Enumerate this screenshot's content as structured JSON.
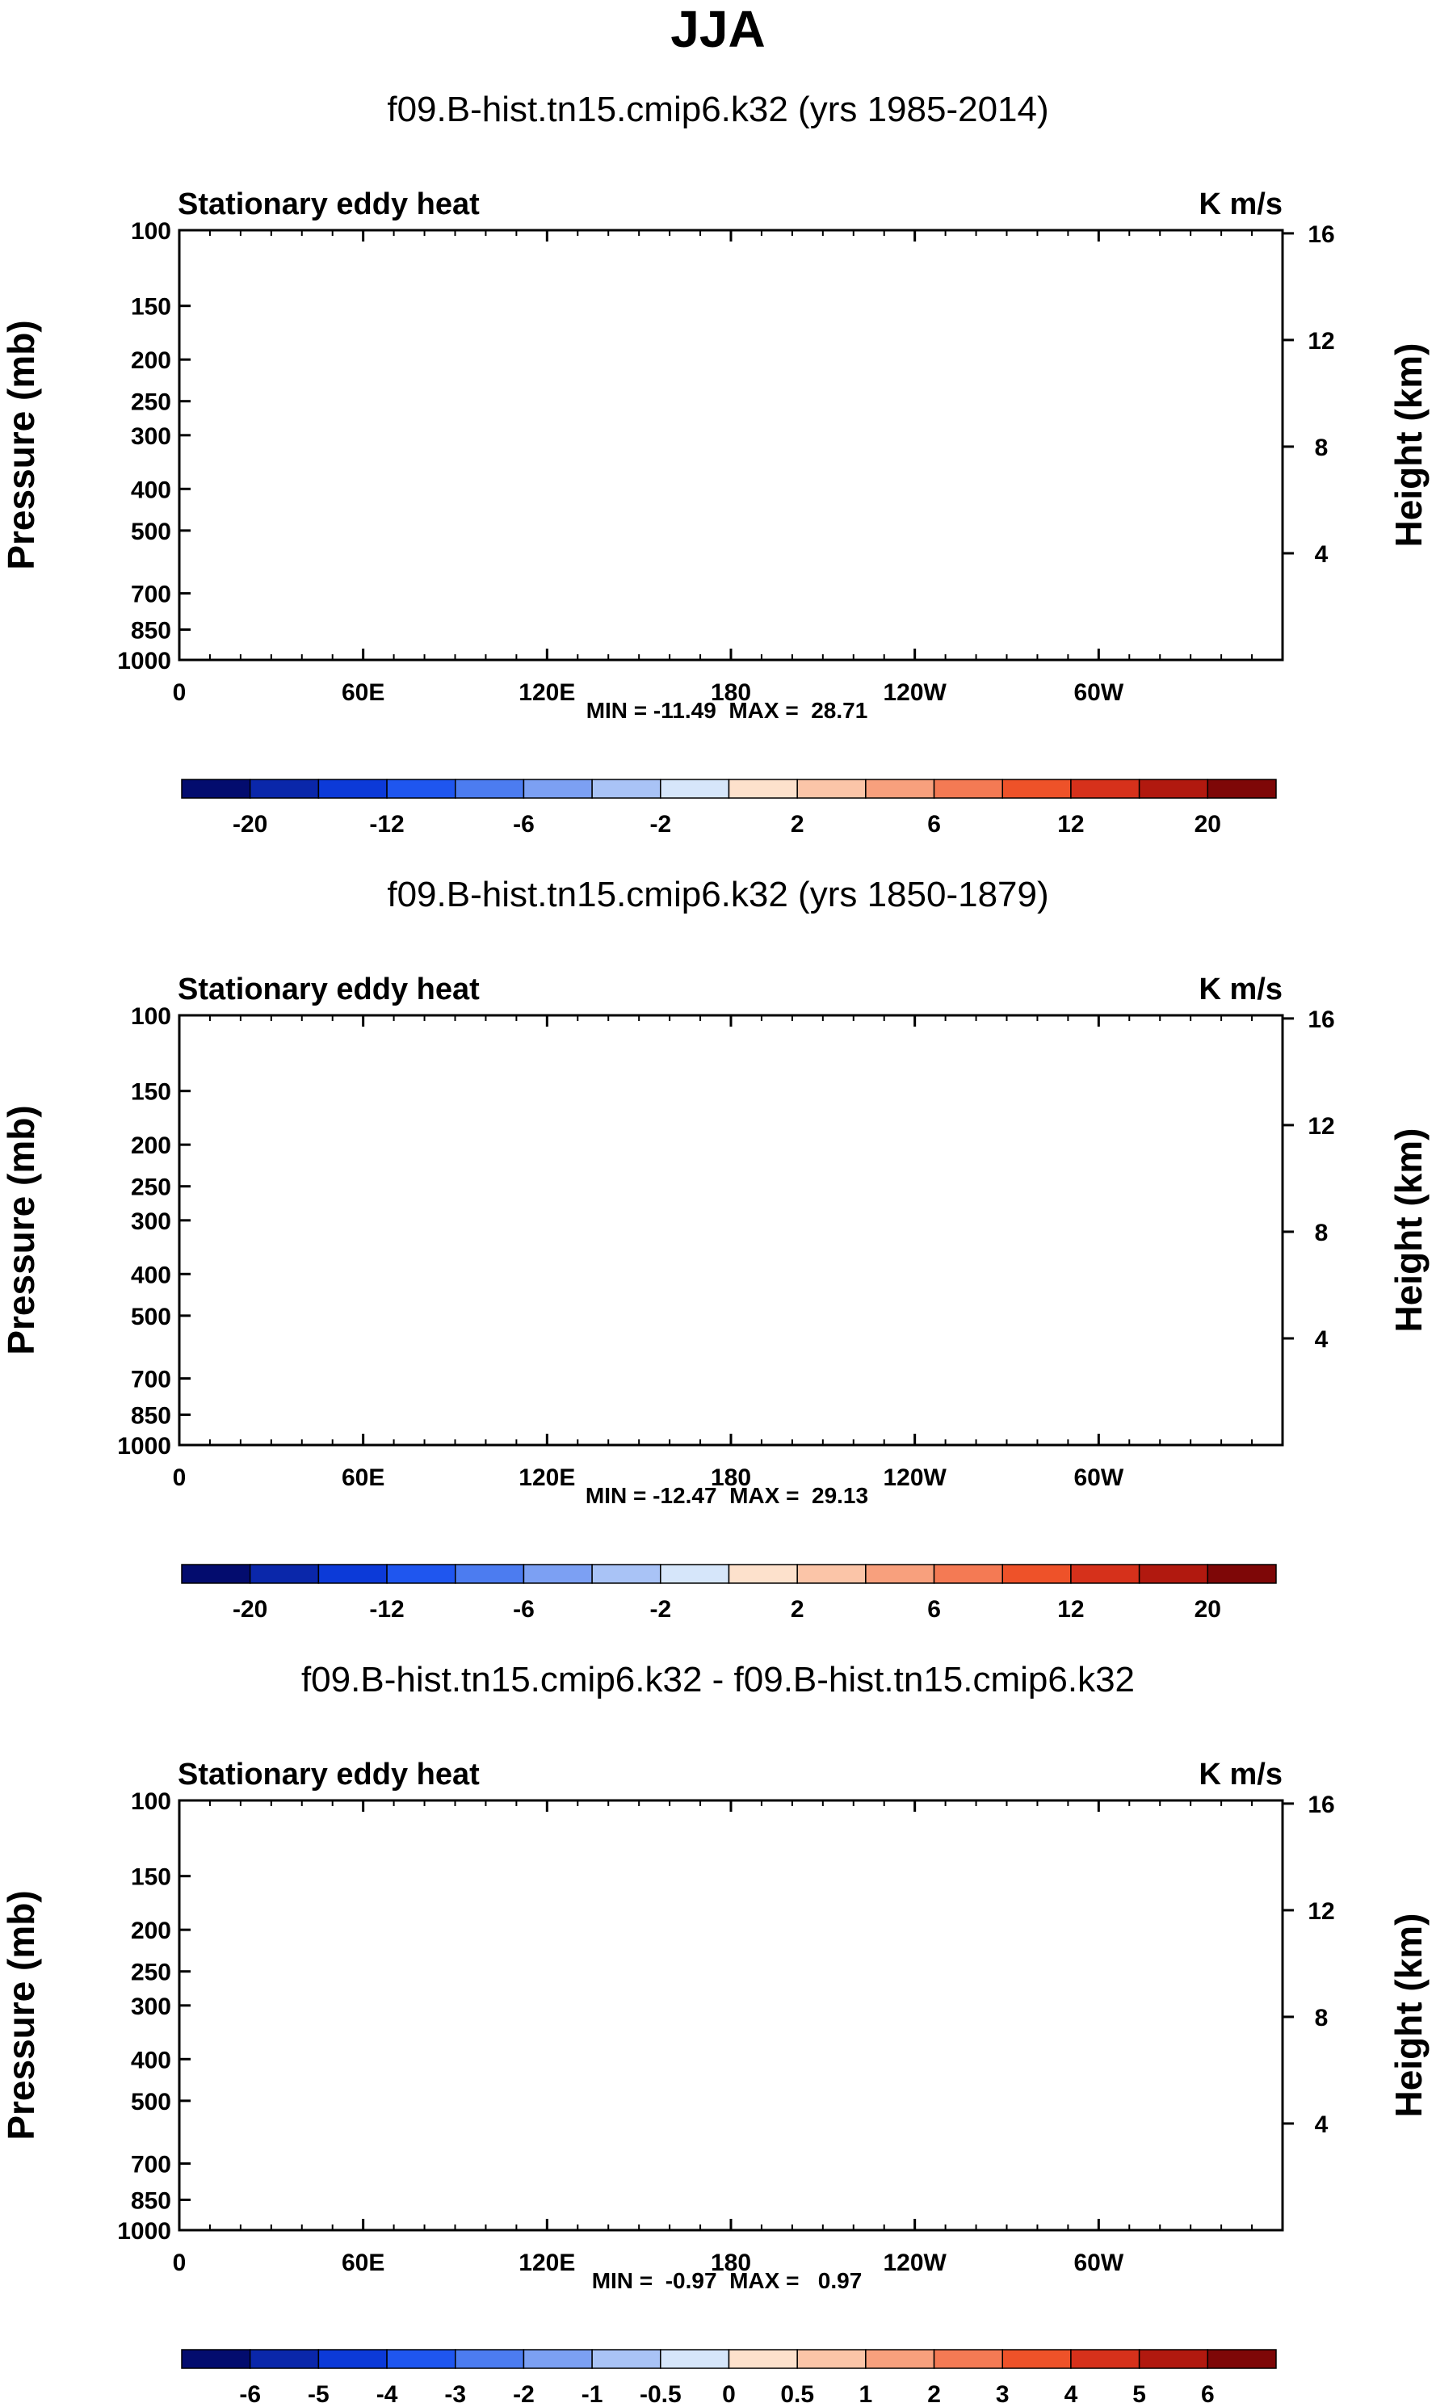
{
  "figure_title": "JJA",
  "colors": {
    "ice_blue": "#d6e6fa",
    "peach": "#fde1cc",
    "ocean": "#000000"
  },
  "chart_data": [
    {
      "type": "heatmap",
      "title": "f09.B-hist.tn15.cmip6.k32 (yrs 1985-2014)",
      "left_label": "Stationary eddy heat",
      "units": "K m/s",
      "xlabel": "",
      "ylabel": "Pressure (mb)",
      "ylabel_right": "Height (km)",
      "x_ticks": [
        "0",
        "60E",
        "120E",
        "180",
        "120W",
        "60W"
      ],
      "y_ticks": [
        "100",
        "150",
        "200",
        "250",
        "300",
        "400",
        "500",
        "700",
        "850",
        "1000"
      ],
      "y_ticks_right": [
        "16",
        "12",
        "8",
        "4"
      ],
      "stats_text": "MIN = -11.49  MAX =  28.71",
      "min": -11.49,
      "max": 28.71,
      "colorbar_labels": [
        "-20",
        "-12",
        "-6",
        "-2",
        "2",
        "6",
        "12",
        "20"
      ],
      "colorbar_colors": [
        "#030c6e",
        "#0a27aa",
        "#0c3ad8",
        "#1f56ef",
        "#4c7cf0",
        "#7ca0f3",
        "#a9c3f6",
        "#d6e6fa",
        "#fde1cc",
        "#fbc5a8",
        "#f8a07d",
        "#f47a54",
        "#ee5229",
        "#d6311b",
        "#b1190f",
        "#7e0707"
      ]
    },
    {
      "type": "heatmap",
      "title": "f09.B-hist.tn15.cmip6.k32 (yrs 1850-1879)",
      "left_label": "Stationary eddy heat",
      "units": "K m/s",
      "xlabel": "",
      "ylabel": "Pressure (mb)",
      "ylabel_right": "Height (km)",
      "x_ticks": [
        "0",
        "60E",
        "120E",
        "180",
        "120W",
        "60W"
      ],
      "y_ticks": [
        "100",
        "150",
        "200",
        "250",
        "300",
        "400",
        "500",
        "700",
        "850",
        "1000"
      ],
      "y_ticks_right": [
        "16",
        "12",
        "8",
        "4"
      ],
      "stats_text": "MIN = -12.47  MAX =  29.13",
      "min": -12.47,
      "max": 29.13,
      "colorbar_labels": [
        "-20",
        "-12",
        "-6",
        "-2",
        "2",
        "6",
        "12",
        "20"
      ],
      "colorbar_colors": [
        "#030c6e",
        "#0a27aa",
        "#0c3ad8",
        "#1f56ef",
        "#4c7cf0",
        "#7ca0f3",
        "#a9c3f6",
        "#d6e6fa",
        "#fde1cc",
        "#fbc5a8",
        "#f8a07d",
        "#f47a54",
        "#ee5229",
        "#d6311b",
        "#b1190f",
        "#7e0707"
      ]
    },
    {
      "type": "heatmap",
      "title": "f09.B-hist.tn15.cmip6.k32 - f09.B-hist.tn15.cmip6.k32",
      "left_label": "Stationary eddy heat",
      "units": "K m/s",
      "xlabel": "",
      "ylabel": "Pressure (mb)",
      "ylabel_right": "Height (km)",
      "x_ticks": [
        "0",
        "60E",
        "120E",
        "180",
        "120W",
        "60W"
      ],
      "y_ticks": [
        "100",
        "150",
        "200",
        "250",
        "300",
        "400",
        "500",
        "700",
        "850",
        "1000"
      ],
      "y_ticks_right": [
        "16",
        "12",
        "8",
        "4"
      ],
      "stats_text": "MIN =  -0.97  MAX =   0.97",
      "min": -0.97,
      "max": 0.97,
      "colorbar_labels": [
        "-6",
        "-5",
        "-4",
        "-3",
        "-2",
        "-1",
        "-0.5",
        "0",
        "0.5",
        "1",
        "2",
        "3",
        "4",
        "5",
        "6"
      ],
      "colorbar_colors": [
        "#030c6e",
        "#0a27aa",
        "#0c3ad8",
        "#1f56ef",
        "#4c7cf0",
        "#7ca0f3",
        "#a9c3f6",
        "#d6e6fa",
        "#fde1cc",
        "#fbc5a8",
        "#f8a07d",
        "#f47a54",
        "#ee5229",
        "#d6311b",
        "#b1190f",
        "#7e0707"
      ]
    }
  ]
}
